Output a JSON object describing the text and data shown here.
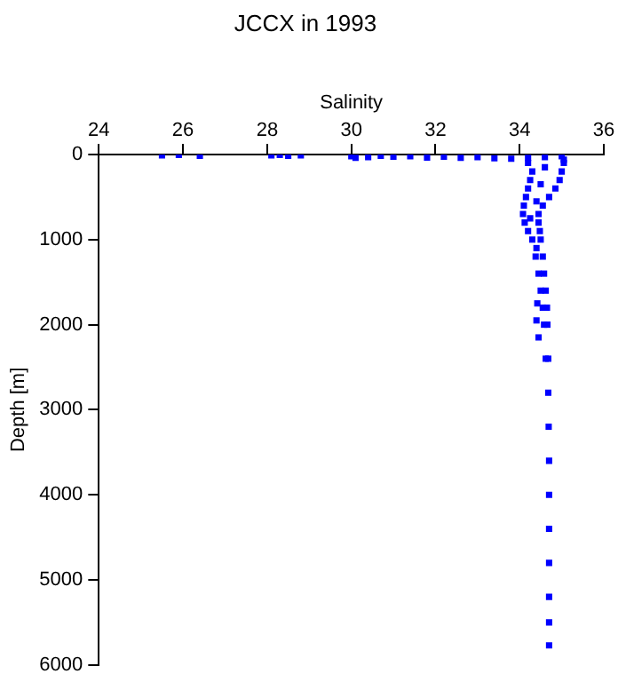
{
  "chart_data": {
    "type": "scatter",
    "title": "JCCX in 1993",
    "xlabel": "Salinity",
    "ylabel": "Depth [m]",
    "xlim": [
      24,
      36
    ],
    "xticks": [
      24,
      26,
      28,
      30,
      32,
      34,
      36
    ],
    "ylim": [
      6000,
      0
    ],
    "yticks": [
      0,
      1000,
      2000,
      3000,
      4000,
      5000,
      6000
    ],
    "grid": false,
    "legend": false,
    "marker": "square",
    "series": [
      {
        "color": "#0000ff",
        "x": [
          25.5,
          25.9,
          26.4,
          28.1,
          28.3,
          28.5,
          28.8,
          30.0,
          30.1,
          30.4,
          30.7,
          31.0,
          31.4,
          31.8,
          32.2,
          32.6,
          33.0,
          33.4,
          33.8,
          34.2,
          34.6,
          35.0,
          35.05,
          34.2,
          34.3,
          34.25,
          34.2,
          34.15,
          34.1,
          34.08,
          34.12,
          34.2,
          34.3,
          34.38,
          34.45,
          34.5,
          34.55,
          34.58,
          34.62,
          35.05,
          35.0,
          34.95,
          34.85,
          34.7,
          34.55,
          34.45,
          34.45,
          34.48,
          34.5,
          34.55,
          34.58,
          34.62,
          34.65,
          34.66,
          34.68,
          34.6,
          34.5,
          34.4,
          34.25,
          34.4,
          34.42,
          34.4,
          34.45,
          34.68,
          34.69,
          34.7,
          34.7,
          34.7,
          34.7,
          34.7,
          34.7,
          34.7
        ],
        "values": [
          10,
          5,
          15,
          10,
          5,
          15,
          10,
          20,
          40,
          30,
          15,
          25,
          20,
          35,
          25,
          40,
          30,
          45,
          50,
          40,
          30,
          20,
          60,
          100,
          200,
          300,
          400,
          500,
          600,
          700,
          800,
          900,
          1000,
          1200,
          1400,
          1600,
          1800,
          2000,
          2400,
          100,
          200,
          300,
          400,
          500,
          600,
          700,
          800,
          900,
          1000,
          1200,
          1400,
          1600,
          1800,
          2000,
          2400,
          150,
          350,
          550,
          750,
          1100,
          1750,
          1950,
          2150,
          2800,
          3200,
          3600,
          4000,
          4400,
          4800,
          5200,
          5500,
          5770
        ]
      }
    ]
  }
}
